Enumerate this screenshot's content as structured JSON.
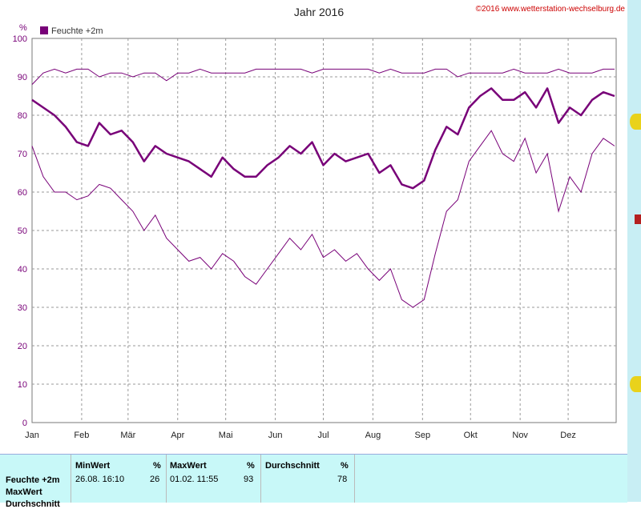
{
  "chart_data": {
    "type": "line",
    "title": "Jahr 2016",
    "copyright": "©2016 www.wetterstation-wechselburg.de",
    "ylabel": "%",
    "ylim": [
      0,
      100
    ],
    "yticks": [
      0,
      10,
      20,
      30,
      40,
      50,
      60,
      70,
      80,
      90,
      100
    ],
    "xlim": [
      1,
      366
    ],
    "xticks": [
      {
        "label": "Jan",
        "day": 1
      },
      {
        "label": "Feb",
        "day": 32
      },
      {
        "label": "Mär",
        "day": 61
      },
      {
        "label": "Apr",
        "day": 92
      },
      {
        "label": "Mai",
        "day": 122
      },
      {
        "label": "Jun",
        "day": 153
      },
      {
        "label": "Jul",
        "day": 183
      },
      {
        "label": "Aug",
        "day": 214
      },
      {
        "label": "Sep",
        "day": 245
      },
      {
        "label": "Okt",
        "day": 275
      },
      {
        "label": "Nov",
        "day": 306
      },
      {
        "label": "Dez",
        "day": 336
      }
    ],
    "grid": true,
    "legend": "top-left",
    "series": [
      {
        "name": "Feuchte +2m",
        "color": "#780078",
        "x": [
          1,
          8,
          15,
          22,
          29,
          36,
          43,
          50,
          57,
          64,
          71,
          78,
          85,
          92,
          99,
          106,
          113,
          120,
          127,
          134,
          141,
          148,
          155,
          162,
          169,
          176,
          183,
          190,
          197,
          204,
          211,
          218,
          225,
          232,
          239,
          246,
          253,
          260,
          267,
          274,
          281,
          288,
          295,
          302,
          309,
          316,
          323,
          330,
          337,
          344,
          351,
          358,
          365
        ],
        "max": [
          88,
          91,
          92,
          91,
          92,
          92,
          90,
          91,
          91,
          90,
          91,
          91,
          89,
          91,
          91,
          92,
          91,
          91,
          91,
          91,
          92,
          92,
          92,
          92,
          92,
          91,
          92,
          92,
          92,
          92,
          92,
          91,
          92,
          91,
          91,
          91,
          92,
          92,
          90,
          91,
          91,
          91,
          91,
          92,
          91,
          91,
          91,
          92,
          91,
          91,
          91,
          92,
          92
        ],
        "mean": [
          84,
          82,
          80,
          77,
          73,
          72,
          78,
          75,
          76,
          73,
          68,
          72,
          70,
          69,
          68,
          66,
          64,
          69,
          66,
          64,
          64,
          67,
          69,
          72,
          70,
          73,
          67,
          70,
          68,
          69,
          70,
          65,
          67,
          62,
          61,
          63,
          71,
          77,
          75,
          82,
          85,
          87,
          84,
          84,
          86,
          82,
          87,
          78,
          82,
          80,
          84,
          86,
          85
        ],
        "min": [
          72,
          64,
          60,
          60,
          58,
          59,
          62,
          61,
          58,
          55,
          50,
          54,
          48,
          45,
          42,
          43,
          40,
          44,
          42,
          38,
          36,
          40,
          44,
          48,
          45,
          49,
          43,
          45,
          42,
          44,
          40,
          37,
          40,
          32,
          30,
          32,
          44,
          55,
          58,
          68,
          72,
          76,
          70,
          68,
          74,
          65,
          70,
          55,
          64,
          60,
          70,
          74,
          72
        ]
      }
    ]
  },
  "stats": {
    "row_labels": [
      "Feuchte +2m",
      "MaxWert",
      "Durchschnitt"
    ],
    "min_header": "MinWert",
    "max_header": "MaxWert",
    "avg_header": "Durchschnitt",
    "unit": "%",
    "min_time": "26.08. 16:10",
    "min_value": "26",
    "max_time": "01.02. 11:55",
    "max_value": "93",
    "avg_value": "78"
  }
}
